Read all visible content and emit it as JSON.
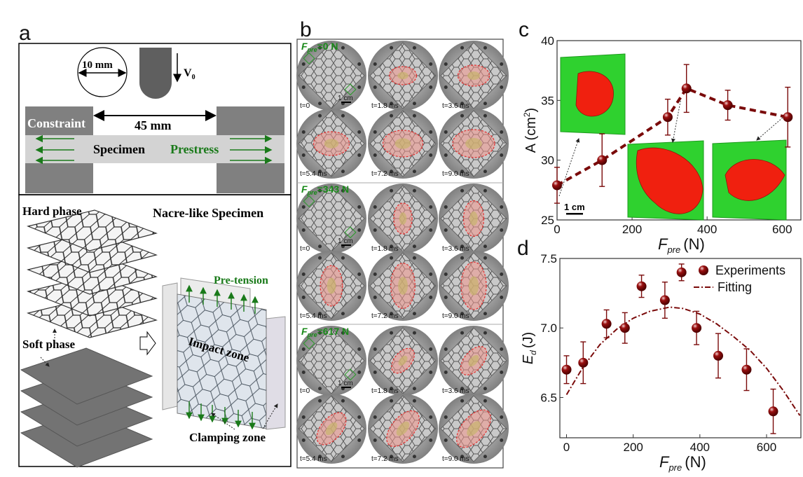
{
  "panel_labels": {
    "a": "a",
    "b": "b",
    "c": "c",
    "d": "d"
  },
  "panel_a": {
    "diameter_label": "10 mm",
    "velocity_label": "V",
    "velocity_sub": "0",
    "span_label": "45 mm",
    "constraint_label": "Constraint",
    "specimen_label": "Specimen",
    "prestress_label": "Prestress",
    "hard_phase_label": "Hard phase",
    "soft_phase_label": "Soft phase",
    "nacre_label": "Nacre-like Specimen",
    "pretension_label": "Pre-tension",
    "impact_zone_label": "Impact zone",
    "clamping_zone_label": "Clamping zone",
    "colors": {
      "green": "#1a7a1a",
      "block": "#808080",
      "band": "#d3d3d3",
      "soft": "#737373"
    }
  },
  "panel_b": {
    "scale_label": "1 cm",
    "groups": [
      {
        "force_prefix": "F",
        "force_sub": "pre",
        "force_value": "=0 N",
        "orientation": "horizontal",
        "frames": [
          "t=0",
          "t=1.8 ms",
          "t=3.6 ms",
          "t=5.4 ms",
          "t=7.2 ms",
          "t=9.0 ms"
        ]
      },
      {
        "force_prefix": "F",
        "force_sub": "pre",
        "force_value": "=343 N",
        "orientation": "vertical",
        "frames": [
          "t=0",
          "t=1.8 ms",
          "t=3.6 ms",
          "t=5.4 ms",
          "t=7.2 ms",
          "t=9.0 ms"
        ]
      },
      {
        "force_prefix": "F",
        "force_sub": "pre",
        "force_value": "=617 N",
        "orientation": "diagonal",
        "frames": [
          "t=0",
          "t=1.8 ms",
          "t=3.6 ms",
          "t=5.4 ms",
          "t=7.2 ms",
          "t=9.0 ms"
        ]
      }
    ]
  },
  "chart_data": [
    {
      "type": "line",
      "panel": "c",
      "x": [
        0,
        120,
        295,
        345,
        455,
        615
      ],
      "y": [
        27.9,
        30.0,
        33.6,
        36.0,
        34.6,
        33.6
      ],
      "yerr": [
        1.5,
        2.2,
        1.5,
        2.0,
        1.25,
        2.5
      ],
      "xlabel": "F",
      "xlabel_sub": "pre",
      "xlabel_unit": "(N)",
      "ylabel": "A (cm",
      "ylabel_sup": "2",
      "ylabel_end": ")",
      "xlim": [
        0,
        650
      ],
      "ylim": [
        25,
        40
      ],
      "xticks": [
        0,
        200,
        400,
        600
      ],
      "yticks": [
        25,
        30,
        35,
        40
      ],
      "line_style": "dashed",
      "inset_scale_label": "1 cm",
      "color": "#7a0a0a",
      "inset_colors": {
        "plate": "#2fd12f",
        "damage": "#f0200f"
      }
    },
    {
      "type": "scatter",
      "panel": "d",
      "series": [
        {
          "name": "Experiments",
          "x": [
            0,
            50,
            120,
            175,
            225,
            295,
            345,
            390,
            455,
            540,
            620
          ],
          "y": [
            6.7,
            6.75,
            7.03,
            7.0,
            7.3,
            7.2,
            7.4,
            7.0,
            6.8,
            6.7,
            6.4
          ],
          "yerr": [
            0.1,
            0.15,
            0.1,
            0.11,
            0.08,
            0.13,
            0.06,
            0.12,
            0.16,
            0.15,
            0.16
          ]
        },
        {
          "name": "Fitting",
          "style": "dash-dot",
          "x": [
            0,
            50,
            100,
            150,
            200,
            250,
            310,
            350,
            400,
            450,
            500,
            550,
            600,
            650,
            700
          ],
          "y": [
            6.52,
            6.72,
            6.88,
            6.99,
            7.07,
            7.12,
            7.15,
            7.14,
            7.1,
            7.03,
            6.94,
            6.84,
            6.71,
            6.55,
            6.37
          ]
        }
      ],
      "xlabel": "F",
      "xlabel_sub": "pre",
      "xlabel_unit": "(N)",
      "ylabel": "E",
      "ylabel_sub": "d",
      "ylabel_unit": "(J)",
      "xlim": [
        -20,
        703
      ],
      "ylim": [
        6.21,
        7.5
      ],
      "xticks": [
        0,
        200,
        400,
        600
      ],
      "yticks": [
        6.5,
        7.0,
        7.5
      ],
      "ytick_labels": [
        "6.5",
        "7.0",
        "7.5"
      ],
      "legend": "top-right",
      "color": "#7a0a0a"
    }
  ]
}
